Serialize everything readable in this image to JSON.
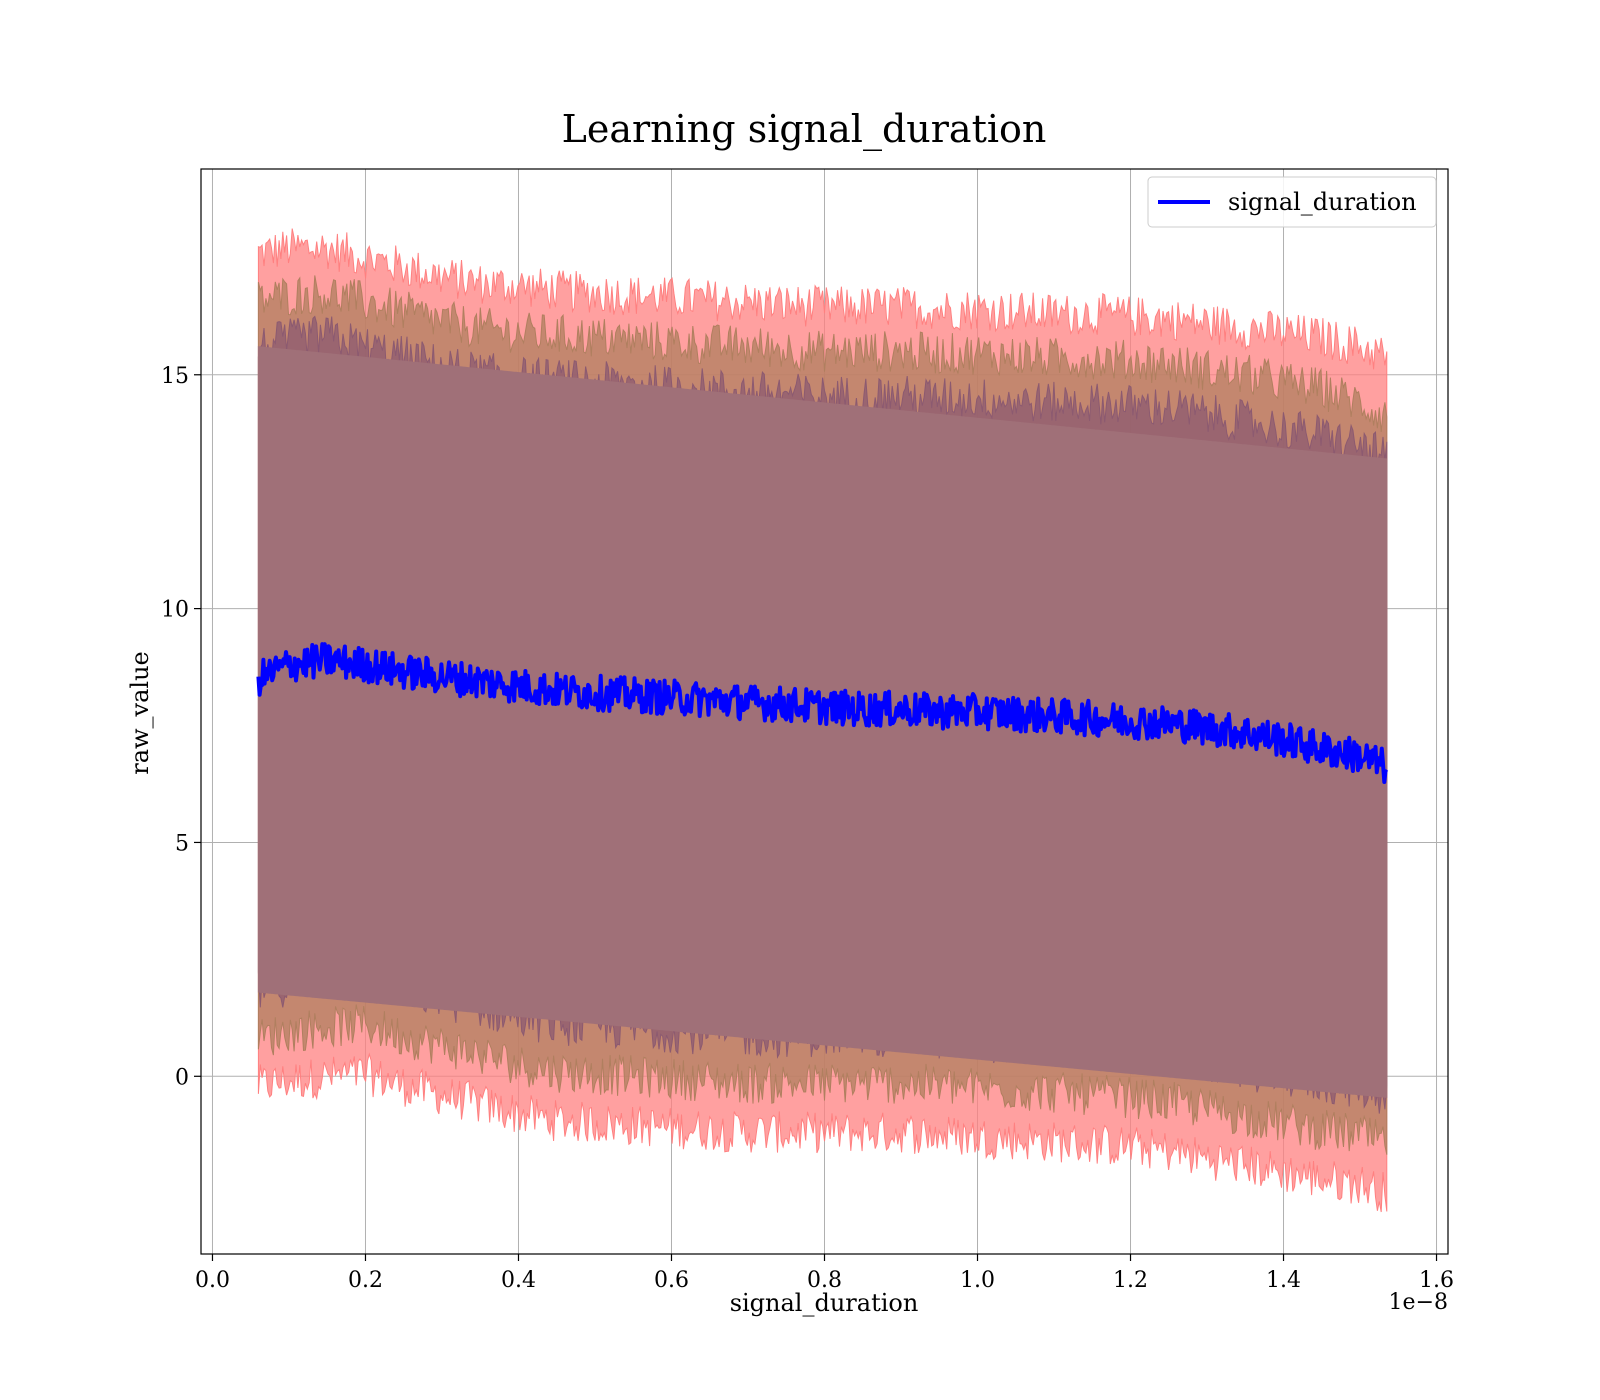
{
  "chart_data": {
    "type": "line",
    "title": "Learning signal_duration",
    "xlabel": "signal_duration",
    "ylabel": "raw_value",
    "x_offset_text": "1e−8",
    "xlim": [
      -0.015,
      1.615
    ],
    "ylim": [
      -3.8,
      19.4
    ],
    "x_ticks": [
      0.0,
      0.2,
      0.4,
      0.6,
      0.8,
      1.0,
      1.2,
      1.4,
      1.6
    ],
    "x_tick_labels": [
      "0.0",
      "0.2",
      "0.4",
      "0.6",
      "0.8",
      "1.0",
      "1.2",
      "1.4",
      "1.6"
    ],
    "y_ticks": [
      0,
      5,
      10,
      15
    ],
    "y_tick_labels": [
      "0",
      "5",
      "10",
      "15"
    ],
    "grid": true,
    "legend_position": "top-right",
    "series": [
      {
        "name": "signal_duration",
        "color": "#0000ff",
        "x": [
          0.06,
          0.1,
          0.15,
          0.2,
          0.25,
          0.3,
          0.35,
          0.4,
          0.45,
          0.5,
          0.55,
          0.6,
          0.65,
          0.7,
          0.75,
          0.8,
          0.85,
          0.9,
          0.95,
          1.0,
          1.05,
          1.1,
          1.15,
          1.2,
          1.25,
          1.3,
          1.35,
          1.4,
          1.45,
          1.5,
          1.535
        ],
        "y": [
          8.5,
          8.8,
          8.9,
          8.8,
          8.65,
          8.55,
          8.45,
          8.35,
          8.25,
          8.2,
          8.15,
          8.1,
          8.05,
          8.0,
          7.95,
          7.9,
          7.85,
          7.85,
          7.8,
          7.8,
          7.75,
          7.7,
          7.65,
          7.6,
          7.55,
          7.45,
          7.35,
          7.2,
          7.0,
          6.85,
          6.6
        ]
      }
    ],
    "bands": [
      {
        "color": "#ff8080",
        "x": [
          0.06,
          0.1,
          0.15,
          0.2,
          0.25,
          0.3,
          0.35,
          0.4,
          0.45,
          0.5,
          0.55,
          0.6,
          0.65,
          0.7,
          0.75,
          0.8,
          0.85,
          0.9,
          0.95,
          1.0,
          1.05,
          1.1,
          1.15,
          1.2,
          1.25,
          1.3,
          1.35,
          1.4,
          1.45,
          1.5,
          1.535
        ],
        "upper": [
          17.6,
          17.7,
          17.7,
          17.5,
          17.3,
          17.1,
          16.95,
          16.9,
          16.8,
          16.75,
          16.7,
          16.65,
          16.6,
          16.55,
          16.5,
          16.45,
          16.45,
          16.45,
          16.4,
          16.4,
          16.35,
          16.3,
          16.3,
          16.25,
          16.2,
          16.1,
          16.0,
          15.9,
          15.8,
          15.6,
          15.4
        ],
        "lower": [
          -0.2,
          -0.1,
          0.0,
          0.05,
          -0.2,
          -0.4,
          -0.6,
          -0.8,
          -0.95,
          -1.0,
          -1.05,
          -1.1,
          -1.15,
          -1.2,
          -1.2,
          -1.2,
          -1.2,
          -1.2,
          -1.25,
          -1.3,
          -1.35,
          -1.4,
          -1.45,
          -1.5,
          -1.6,
          -1.75,
          -1.9,
          -2.05,
          -2.2,
          -2.3,
          -2.5
        ]
      },
      {
        "color": "#b07f5f",
        "x": [
          0.06,
          0.1,
          0.15,
          0.2,
          0.25,
          0.3,
          0.35,
          0.4,
          0.45,
          0.5,
          0.55,
          0.6,
          0.65,
          0.7,
          0.75,
          0.8,
          0.85,
          0.9,
          0.95,
          1.0,
          1.05,
          1.1,
          1.15,
          1.2,
          1.25,
          1.3,
          1.35,
          1.4,
          1.45,
          1.5,
          1.535
        ],
        "upper": [
          16.6,
          16.7,
          16.75,
          16.55,
          16.35,
          16.15,
          16.0,
          15.9,
          15.85,
          15.8,
          15.75,
          15.7,
          15.65,
          15.6,
          15.55,
          15.5,
          15.5,
          15.5,
          15.45,
          15.45,
          15.4,
          15.35,
          15.35,
          15.3,
          15.25,
          15.1,
          15.0,
          14.85,
          14.7,
          14.4,
          14.1
        ],
        "lower": [
          0.8,
          0.95,
          1.05,
          1.1,
          0.85,
          0.65,
          0.45,
          0.25,
          0.1,
          0.05,
          0.0,
          -0.05,
          -0.1,
          -0.15,
          -0.15,
          -0.15,
          -0.15,
          -0.15,
          -0.2,
          -0.25,
          -0.3,
          -0.35,
          -0.4,
          -0.45,
          -0.55,
          -0.7,
          -0.85,
          -1.0,
          -1.15,
          -1.25,
          -1.45
        ]
      },
      {
        "color": "#8c5a70",
        "x": [
          0.06,
          0.1,
          0.15,
          0.2,
          0.25,
          0.3,
          0.35,
          0.4,
          0.45,
          0.5,
          0.55,
          0.6,
          0.65,
          0.7,
          0.75,
          0.8,
          0.85,
          0.9,
          0.95,
          1.0,
          1.05,
          1.1,
          1.15,
          1.2,
          1.25,
          1.3,
          1.35,
          1.4,
          1.45,
          1.5,
          1.535
        ],
        "upper": [
          15.6,
          15.75,
          15.85,
          15.6,
          15.4,
          15.2,
          15.05,
          14.95,
          14.9,
          14.85,
          14.8,
          14.75,
          14.7,
          14.65,
          14.6,
          14.55,
          14.55,
          14.55,
          14.5,
          14.5,
          14.45,
          14.4,
          14.4,
          14.35,
          14.3,
          14.15,
          14.0,
          13.85,
          13.7,
          13.5,
          13.2
        ],
        "lower": [
          1.8,
          1.95,
          2.05,
          2.1,
          1.85,
          1.65,
          1.45,
          1.25,
          1.1,
          1.05,
          1.0,
          0.95,
          0.9,
          0.85,
          0.85,
          0.85,
          0.85,
          0.85,
          0.8,
          0.75,
          0.7,
          0.65,
          0.6,
          0.55,
          0.45,
          0.3,
          0.15,
          0.0,
          -0.15,
          -0.25,
          -0.45
        ]
      },
      {
        "color": "#a07078",
        "x": [
          0.06,
          1.535
        ],
        "upper": [
          15.6,
          13.2
        ],
        "lower": [
          1.8,
          -0.45
        ]
      }
    ]
  }
}
